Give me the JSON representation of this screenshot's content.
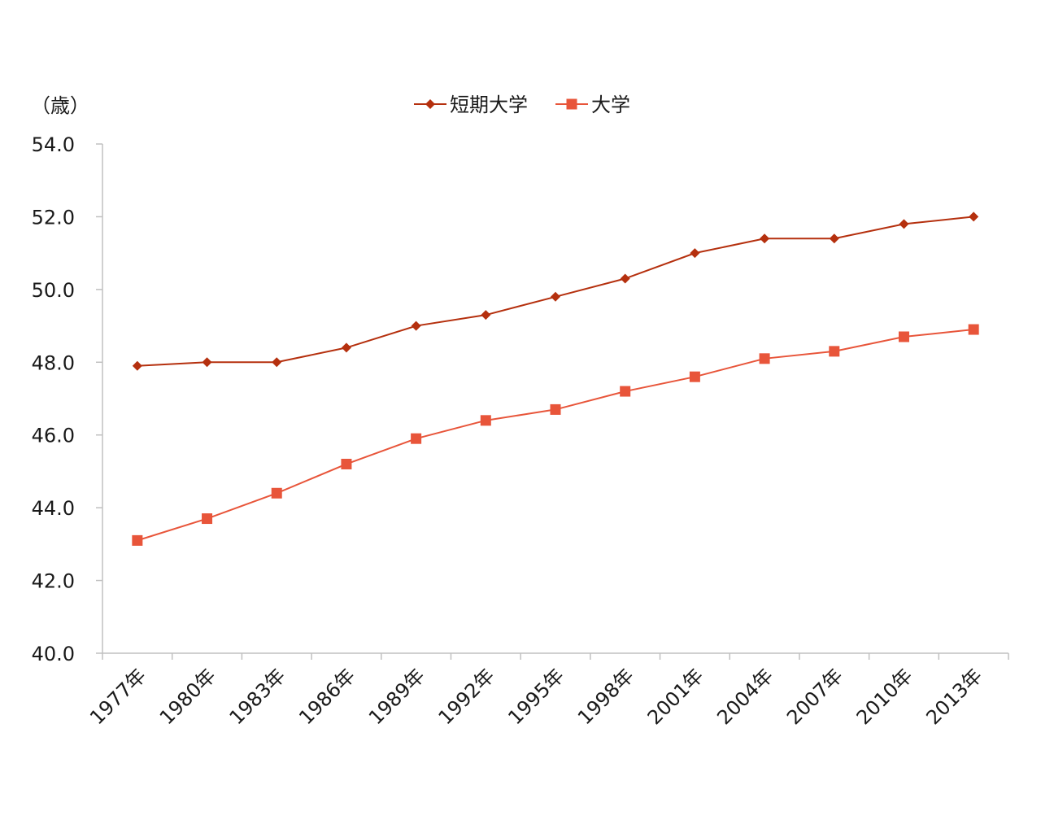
{
  "chart_data": {
    "type": "line",
    "title": "",
    "xlabel": "",
    "ylabel": "（歳）",
    "ylim": [
      40,
      54
    ],
    "y_ticks": [
      "40.0",
      "42.0",
      "44.0",
      "46.0",
      "48.0",
      "50.0",
      "52.0",
      "54.0"
    ],
    "categories": [
      "1977年",
      "1980年",
      "1983年",
      "1986年",
      "1989年",
      "1992年",
      "1995年",
      "1998年",
      "2001年",
      "2004年",
      "2007年",
      "2010年",
      "2013年"
    ],
    "grid": false,
    "legend_position": "top-center",
    "series": [
      {
        "name": "短期大学",
        "marker": "diamond",
        "color": "#B5300E",
        "values": [
          47.9,
          48.0,
          48.0,
          48.4,
          49.0,
          49.3,
          49.8,
          50.3,
          51.0,
          51.4,
          51.4,
          51.8,
          52.0
        ]
      },
      {
        "name": "大学",
        "marker": "square",
        "color": "#E8553A",
        "values": [
          43.1,
          43.7,
          44.4,
          45.2,
          45.9,
          46.4,
          46.7,
          47.2,
          47.6,
          48.1,
          48.3,
          48.7,
          48.9
        ]
      }
    ]
  }
}
